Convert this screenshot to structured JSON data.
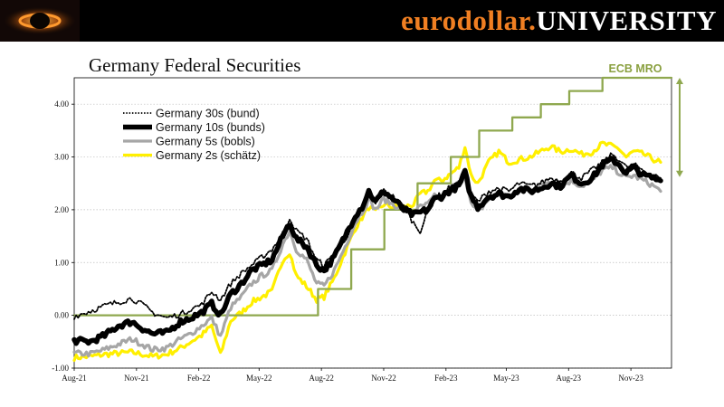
{
  "banner": {
    "brand_part1": "eurodollar.",
    "brand_part2": "UNIVERSITY",
    "brand_color": "#f07f22",
    "logo_icon": "orange-ring-logo-icon"
  },
  "page_title": "Germany Federal Securities",
  "chart_data": {
    "type": "line",
    "title": "Germany Federal Securities",
    "xlabel": "",
    "ylabel": "",
    "xlim": [
      "2021-08-01",
      "2023-12-31"
    ],
    "ylim": [
      -1.0,
      4.5
    ],
    "yticks": [
      4.0,
      3.0,
      2.0,
      1.0,
      0.0,
      -1.0
    ],
    "ytick_labels": [
      "4.00",
      "3.00",
      "2.00",
      "1.00",
      "0.00",
      "-1.00"
    ],
    "xticks": [
      "2021-08-01",
      "2021-11-01",
      "2022-02-01",
      "2022-05-01",
      "2022-08-01",
      "2022-11-01",
      "2023-02-01",
      "2023-05-01",
      "2023-08-01",
      "2023-11-01"
    ],
    "xtick_labels": [
      "Aug-21",
      "Nov-21",
      "Feb-22",
      "May-22",
      "Aug-22",
      "Nov-22",
      "Feb-23",
      "May-23",
      "Aug-23",
      "Nov-23"
    ],
    "grid": "horizontal-dotted",
    "legend": "top-left",
    "series": [
      {
        "name": "Germany 30s (bund)",
        "color": "#000000",
        "style": "dotted",
        "x": [
          "2021-08-01",
          "2021-08-25",
          "2021-09-15",
          "2021-10-05",
          "2021-10-25",
          "2021-11-10",
          "2021-11-25",
          "2021-12-15",
          "2022-01-05",
          "2022-01-20",
          "2022-02-05",
          "2022-02-20",
          "2022-03-05",
          "2022-03-20",
          "2022-04-05",
          "2022-04-20",
          "2022-05-05",
          "2022-05-20",
          "2022-06-05",
          "2022-06-15",
          "2022-06-25",
          "2022-07-10",
          "2022-07-25",
          "2022-08-05",
          "2022-08-20",
          "2022-09-05",
          "2022-09-20",
          "2022-09-30",
          "2022-10-10",
          "2022-10-20",
          "2022-11-01",
          "2022-11-15",
          "2022-12-01",
          "2022-12-15",
          "2022-12-25",
          "2023-01-05",
          "2023-01-15",
          "2023-01-25",
          "2023-02-05",
          "2023-02-20",
          "2023-03-01",
          "2023-03-10",
          "2023-03-20",
          "2023-04-05",
          "2023-04-20",
          "2023-05-05",
          "2023-05-20",
          "2023-06-05",
          "2023-06-20",
          "2023-07-05",
          "2023-07-20",
          "2023-08-05",
          "2023-08-20",
          "2023-09-05",
          "2023-09-20",
          "2023-10-05",
          "2023-10-15",
          "2023-10-25",
          "2023-11-05",
          "2023-11-20",
          "2023-12-05",
          "2023-12-15"
        ],
        "values": [
          -0.02,
          0.08,
          0.18,
          0.25,
          0.32,
          0.2,
          0.05,
          -0.05,
          0.02,
          0.12,
          0.2,
          0.45,
          0.3,
          0.6,
          0.8,
          0.95,
          1.1,
          1.25,
          1.55,
          1.85,
          1.6,
          1.45,
          1.05,
          0.95,
          1.15,
          1.45,
          1.75,
          2.05,
          2.3,
          2.1,
          2.35,
          2.25,
          2.05,
          1.75,
          1.6,
          1.95,
          2.2,
          2.3,
          2.4,
          2.5,
          2.75,
          2.3,
          2.15,
          2.35,
          2.4,
          2.35,
          2.5,
          2.45,
          2.5,
          2.6,
          2.55,
          2.7,
          2.6,
          2.75,
          2.9,
          3.05,
          2.95,
          2.8,
          2.85,
          2.75,
          2.65,
          2.6
        ]
      },
      {
        "name": "Germany 10s (bunds)",
        "color": "#000000",
        "style": "thick",
        "x": [
          "2021-08-01",
          "2021-08-25",
          "2021-09-15",
          "2021-10-05",
          "2021-10-25",
          "2021-11-10",
          "2021-11-25",
          "2021-12-15",
          "2022-01-05",
          "2022-01-20",
          "2022-02-05",
          "2022-02-20",
          "2022-03-05",
          "2022-03-20",
          "2022-04-05",
          "2022-04-20",
          "2022-05-05",
          "2022-05-20",
          "2022-06-05",
          "2022-06-15",
          "2022-06-25",
          "2022-07-10",
          "2022-07-25",
          "2022-08-05",
          "2022-08-20",
          "2022-09-05",
          "2022-09-20",
          "2022-09-30",
          "2022-10-10",
          "2022-10-20",
          "2022-11-01",
          "2022-11-15",
          "2022-12-01",
          "2022-12-15",
          "2022-12-25",
          "2023-01-05",
          "2023-01-15",
          "2023-01-25",
          "2023-02-05",
          "2023-02-20",
          "2023-03-01",
          "2023-03-10",
          "2023-03-20",
          "2023-04-05",
          "2023-04-20",
          "2023-05-05",
          "2023-05-20",
          "2023-06-05",
          "2023-06-20",
          "2023-07-05",
          "2023-07-20",
          "2023-08-05",
          "2023-08-20",
          "2023-09-05",
          "2023-09-20",
          "2023-10-05",
          "2023-10-15",
          "2023-10-25",
          "2023-11-05",
          "2023-11-20",
          "2023-12-05",
          "2023-12-15"
        ],
        "values": [
          -0.48,
          -0.5,
          -0.38,
          -0.2,
          -0.12,
          -0.25,
          -0.35,
          -0.33,
          -0.12,
          -0.05,
          0.05,
          0.22,
          0.0,
          0.4,
          0.6,
          0.85,
          0.95,
          1.05,
          1.5,
          1.75,
          1.45,
          1.3,
          0.95,
          0.85,
          1.1,
          1.5,
          1.9,
          2.05,
          2.35,
          2.15,
          2.35,
          2.2,
          2.0,
          1.9,
          1.95,
          2.0,
          2.2,
          2.25,
          2.35,
          2.45,
          2.7,
          2.25,
          2.05,
          2.25,
          2.3,
          2.25,
          2.4,
          2.35,
          2.4,
          2.5,
          2.45,
          2.65,
          2.5,
          2.6,
          2.85,
          2.95,
          2.85,
          2.7,
          2.8,
          2.65,
          2.6,
          2.55
        ]
      },
      {
        "name": "Germany 5s (bobls)",
        "color": "#a6a6a6",
        "style": "solid",
        "x": [
          "2021-08-01",
          "2021-08-25",
          "2021-09-15",
          "2021-10-05",
          "2021-10-25",
          "2021-11-10",
          "2021-11-25",
          "2021-12-15",
          "2022-01-05",
          "2022-01-20",
          "2022-02-05",
          "2022-02-20",
          "2022-03-05",
          "2022-03-20",
          "2022-04-05",
          "2022-04-20",
          "2022-05-05",
          "2022-05-20",
          "2022-06-05",
          "2022-06-15",
          "2022-06-25",
          "2022-07-10",
          "2022-07-25",
          "2022-08-05",
          "2022-08-20",
          "2022-09-05",
          "2022-09-20",
          "2022-09-30",
          "2022-10-10",
          "2022-10-20",
          "2022-11-01",
          "2022-11-15",
          "2022-12-01",
          "2022-12-15",
          "2022-12-25",
          "2023-01-05",
          "2023-01-15",
          "2023-01-25",
          "2023-02-05",
          "2023-02-20",
          "2023-03-01",
          "2023-03-10",
          "2023-03-20",
          "2023-04-05",
          "2023-04-20",
          "2023-05-05",
          "2023-05-20",
          "2023-06-05",
          "2023-06-20",
          "2023-07-05",
          "2023-07-20",
          "2023-08-05",
          "2023-08-20",
          "2023-09-05",
          "2023-09-20",
          "2023-10-05",
          "2023-10-15",
          "2023-10-25",
          "2023-11-05",
          "2023-11-20",
          "2023-12-05",
          "2023-12-15"
        ],
        "values": [
          -0.72,
          -0.73,
          -0.65,
          -0.55,
          -0.45,
          -0.55,
          -0.65,
          -0.62,
          -0.45,
          -0.35,
          -0.2,
          -0.05,
          -0.4,
          0.15,
          0.35,
          0.6,
          0.75,
          0.85,
          1.35,
          1.6,
          1.25,
          1.05,
          0.6,
          0.55,
          0.85,
          1.3,
          1.75,
          1.95,
          2.2,
          2.0,
          2.2,
          2.1,
          2.0,
          1.95,
          2.05,
          2.1,
          2.25,
          2.2,
          2.4,
          2.5,
          2.65,
          2.1,
          1.95,
          2.2,
          2.3,
          2.25,
          2.35,
          2.4,
          2.45,
          2.55,
          2.45,
          2.55,
          2.45,
          2.55,
          2.75,
          2.8,
          2.7,
          2.6,
          2.65,
          2.55,
          2.45,
          2.35
        ]
      },
      {
        "name": "Germany 2s (schätz)",
        "color": "#ffef00",
        "style": "solid",
        "x": [
          "2021-08-01",
          "2021-08-25",
          "2021-09-15",
          "2021-10-05",
          "2021-10-25",
          "2021-11-10",
          "2021-11-25",
          "2021-12-15",
          "2022-01-05",
          "2022-01-20",
          "2022-02-05",
          "2022-02-20",
          "2022-03-05",
          "2022-03-20",
          "2022-04-05",
          "2022-04-20",
          "2022-05-05",
          "2022-05-20",
          "2022-06-05",
          "2022-06-15",
          "2022-06-25",
          "2022-07-10",
          "2022-07-25",
          "2022-08-05",
          "2022-08-20",
          "2022-09-05",
          "2022-09-20",
          "2022-09-30",
          "2022-10-10",
          "2022-10-20",
          "2022-11-01",
          "2022-11-15",
          "2022-12-01",
          "2022-12-15",
          "2022-12-25",
          "2023-01-05",
          "2023-01-15",
          "2023-01-25",
          "2023-02-05",
          "2023-02-20",
          "2023-03-01",
          "2023-03-10",
          "2023-03-20",
          "2023-04-05",
          "2023-04-20",
          "2023-05-05",
          "2023-05-20",
          "2023-06-05",
          "2023-06-20",
          "2023-07-05",
          "2023-07-20",
          "2023-08-05",
          "2023-08-20",
          "2023-09-05",
          "2023-09-20",
          "2023-10-05",
          "2023-10-15",
          "2023-10-25",
          "2023-11-05",
          "2023-11-20",
          "2023-12-05",
          "2023-12-15"
        ],
        "values": [
          -0.8,
          -0.78,
          -0.74,
          -0.72,
          -0.7,
          -0.74,
          -0.78,
          -0.74,
          -0.62,
          -0.5,
          -0.38,
          -0.2,
          -0.75,
          -0.1,
          0.05,
          0.25,
          0.35,
          0.45,
          1.05,
          1.2,
          0.75,
          0.55,
          0.3,
          0.35,
          0.7,
          1.2,
          1.65,
          1.85,
          2.05,
          1.95,
          2.1,
          2.05,
          2.05,
          2.1,
          2.3,
          2.35,
          2.55,
          2.55,
          2.65,
          2.8,
          3.2,
          2.65,
          2.5,
          2.9,
          3.1,
          2.9,
          2.95,
          3.0,
          3.1,
          3.2,
          3.1,
          3.15,
          3.05,
          3.1,
          3.25,
          3.2,
          3.15,
          3.0,
          3.1,
          3.05,
          2.95,
          2.9
        ]
      },
      {
        "name": "ECB MRO",
        "color": "#8fa84f",
        "style": "step",
        "x": [
          "2021-08-01",
          "2022-07-27",
          "2022-09-14",
          "2022-11-02",
          "2022-12-21",
          "2023-02-08",
          "2023-03-22",
          "2023-05-10",
          "2023-06-21",
          "2023-08-02",
          "2023-09-20",
          "2023-12-31"
        ],
        "values": [
          0.0,
          0.5,
          1.25,
          2.0,
          2.5,
          3.0,
          3.5,
          3.75,
          4.0,
          4.25,
          4.5,
          4.5
        ]
      }
    ],
    "annotations": [
      {
        "text": "ECB MRO",
        "color": "#8fa84f"
      }
    ]
  }
}
